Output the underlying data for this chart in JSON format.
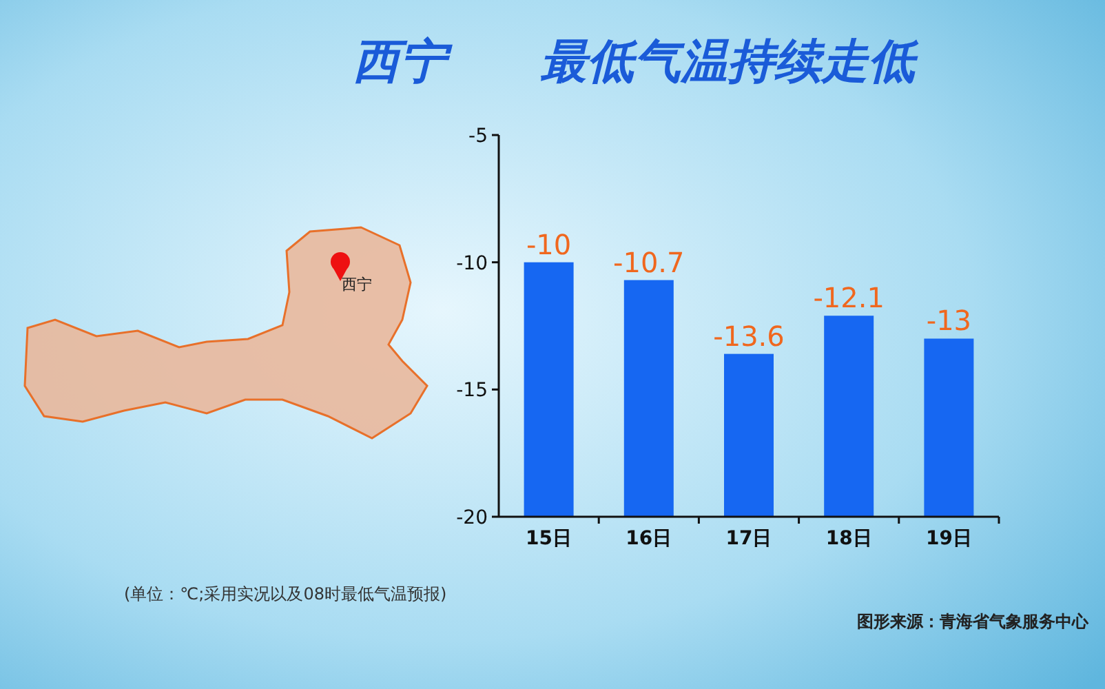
{
  "chart_data": {
    "type": "bar",
    "title": "西宁　　最低气温持续走低",
    "categories": [
      "15日",
      "16日",
      "17日",
      "18日",
      "19日"
    ],
    "base": [
      -20,
      -20,
      -20,
      -20,
      -20
    ],
    "values": [
      10,
      9.3,
      6.4,
      7.9,
      7
    ],
    "value_labels": [
      "-10",
      "-10.7",
      "-13.6",
      "-12.1",
      "-13"
    ],
    "color": "#1667f2",
    "ylim": [
      -20,
      -5
    ],
    "yticks": [
      -5,
      -10,
      -15,
      -20
    ],
    "grid": false,
    "annotations": [
      "西宁",
      "(单位：℃;采用实况以及08时最低气温预报)",
      "图形来源：青海省气象服务中心"
    ]
  }
}
